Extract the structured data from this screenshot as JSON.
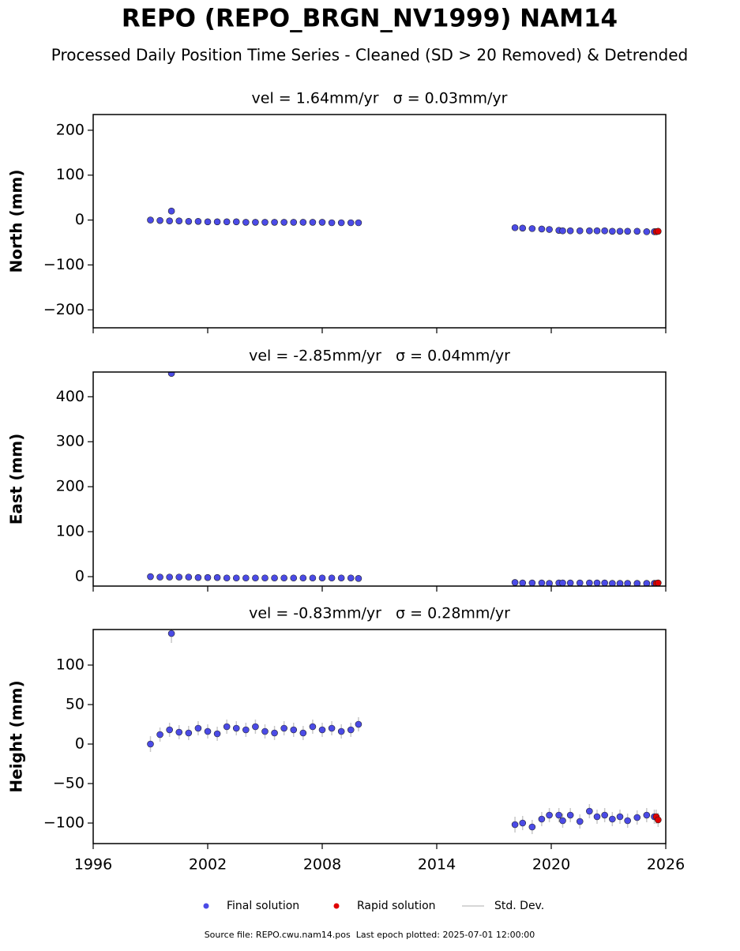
{
  "title": "REPO (REPO_BRGN_NV1999) NAM14",
  "subtitle": "Processed Daily Position Time Series - Cleaned (SD > 20 Removed) & Detrended",
  "std_dev_legend": {
    "name": "Std. Dev.",
    "color": "#c8c8c8"
  },
  "footer": "Source file: REPO.cwu.nam14.pos  Last epoch plotted: 2025-07-01 12:00:00",
  "chart_data": [
    {
      "type": "scatter",
      "title": "vel = 1.64mm/yr   σ = 0.03mm/yr",
      "y_label": "North (mm)",
      "xlim": [
        1996,
        2026
      ],
      "xticks": [
        1996,
        2002,
        2008,
        2014,
        2020,
        2026
      ],
      "x_tick_labels": false,
      "ylim": [
        -240,
        235
      ],
      "yticks": [
        {
          "value": -200,
          "label": "−200"
        },
        {
          "value": -100,
          "label": "−100"
        },
        0,
        100,
        200
      ],
      "series": [
        {
          "name": "Final solution",
          "color": "#4b4be6",
          "x": [
            1999.0,
            1999.5,
            2000.0,
            2000.1,
            2000.5,
            2001.0,
            2001.5,
            2002.0,
            2002.5,
            2003.0,
            2003.5,
            2004.0,
            2004.5,
            2005.0,
            2005.5,
            2006.0,
            2006.5,
            2007.0,
            2007.5,
            2008.0,
            2008.5,
            2009.0,
            2009.5,
            2009.9,
            2018.1,
            2018.5,
            2019.0,
            2019.5,
            2019.9,
            2020.4,
            2020.6,
            2021.0,
            2021.5,
            2022.0,
            2022.4,
            2022.8,
            2023.2,
            2023.6,
            2024.0,
            2024.5,
            2025.0,
            2025.4
          ],
          "values": [
            0,
            -1,
            -2,
            20,
            -2,
            -3,
            -3,
            -4,
            -4,
            -4,
            -4,
            -5,
            -5,
            -5,
            -5,
            -5,
            -5,
            -5,
            -5,
            -5,
            -6,
            -6,
            -6,
            -6,
            -17,
            -18,
            -19,
            -20,
            -21,
            -23,
            -24,
            -24,
            -24,
            -24,
            -24,
            -24,
            -25,
            -25,
            -25,
            -25,
            -26,
            -26
          ],
          "errors": [
            3,
            3,
            3,
            3,
            3,
            3,
            3,
            3,
            3,
            3,
            3,
            3,
            3,
            3,
            3,
            3,
            3,
            3,
            3,
            3,
            3,
            3,
            3,
            3,
            6,
            3,
            3,
            3,
            3,
            3,
            3,
            3,
            3,
            3,
            3,
            3,
            3,
            3,
            3,
            3,
            3,
            3
          ]
        },
        {
          "name": "Rapid solution",
          "color": "#e00000",
          "x": [
            2025.5,
            2025.6
          ],
          "values": [
            -26,
            -25
          ],
          "errors": [
            3,
            3
          ]
        }
      ]
    },
    {
      "type": "scatter",
      "title": "vel = -2.85mm/yr   σ = 0.04mm/yr",
      "y_label": "East (mm)",
      "xlim": [
        1996,
        2026
      ],
      "xticks": [
        1996,
        2002,
        2008,
        2014,
        2020,
        2026
      ],
      "x_tick_labels": false,
      "ylim": [
        -21,
        455
      ],
      "yticks": [
        0,
        100,
        200,
        300,
        400
      ],
      "series": [
        {
          "name": "Final solution",
          "color": "#4b4be6",
          "x": [
            1999.0,
            1999.5,
            2000.0,
            2000.1,
            2000.5,
            2001.0,
            2001.5,
            2002.0,
            2002.5,
            2003.0,
            2003.5,
            2004.0,
            2004.5,
            2005.0,
            2005.5,
            2006.0,
            2006.5,
            2007.0,
            2007.5,
            2008.0,
            2008.5,
            2009.0,
            2009.5,
            2009.9,
            2018.1,
            2018.5,
            2019.0,
            2019.5,
            2019.9,
            2020.4,
            2020.6,
            2021.0,
            2021.5,
            2022.0,
            2022.4,
            2022.8,
            2023.2,
            2023.6,
            2024.0,
            2024.5,
            2025.0,
            2025.4
          ],
          "values": [
            0,
            -1,
            -1,
            452,
            -1,
            -1,
            -2,
            -2,
            -2,
            -3,
            -3,
            -3,
            -3,
            -3,
            -3,
            -3,
            -3,
            -3,
            -3,
            -3,
            -3,
            -3,
            -3,
            -4,
            -13,
            -14,
            -14,
            -14,
            -15,
            -14,
            -14,
            -14,
            -14,
            -14,
            -14,
            -14,
            -15,
            -15,
            -15,
            -15,
            -15,
            -15
          ],
          "errors": [
            3,
            3,
            3,
            3,
            3,
            3,
            3,
            3,
            3,
            3,
            3,
            3,
            3,
            3,
            3,
            3,
            3,
            3,
            3,
            3,
            3,
            3,
            3,
            3,
            6,
            3,
            3,
            3,
            3,
            3,
            3,
            3,
            3,
            3,
            3,
            3,
            3,
            3,
            3,
            3,
            3,
            3
          ]
        },
        {
          "name": "Rapid solution",
          "color": "#e00000",
          "x": [
            2025.5,
            2025.6
          ],
          "values": [
            -15,
            -14
          ],
          "errors": [
            3,
            3
          ]
        }
      ]
    },
    {
      "type": "scatter",
      "title": "vel = -0.83mm/yr   σ = 0.28mm/yr",
      "y_label": "Height (mm)",
      "xlim": [
        1996,
        2026
      ],
      "xticks": [
        1996,
        2002,
        2008,
        2014,
        2020,
        2026
      ],
      "x_tick_labels": true,
      "ylim": [
        -126,
        145
      ],
      "yticks": [
        {
          "value": -100,
          "label": "−100"
        },
        {
          "value": -50,
          "label": "−50"
        },
        0,
        50,
        100
      ],
      "series": [
        {
          "name": "Final solution",
          "color": "#4b4be6",
          "x": [
            1999.0,
            1999.5,
            2000.0,
            2000.1,
            2000.5,
            2001.0,
            2001.5,
            2002.0,
            2002.5,
            2003.0,
            2003.5,
            2004.0,
            2004.5,
            2005.0,
            2005.5,
            2006.0,
            2006.5,
            2007.0,
            2007.5,
            2008.0,
            2008.5,
            2009.0,
            2009.5,
            2009.9,
            2018.1,
            2018.5,
            2019.0,
            2019.5,
            2019.9,
            2020.4,
            2020.6,
            2021.0,
            2021.5,
            2022.0,
            2022.4,
            2022.8,
            2023.2,
            2023.6,
            2024.0,
            2024.5,
            2025.0,
            2025.4
          ],
          "values": [
            0,
            12,
            18,
            140,
            15,
            14,
            20,
            16,
            13,
            22,
            20,
            18,
            22,
            16,
            14,
            20,
            18,
            14,
            22,
            18,
            20,
            16,
            18,
            25,
            -102,
            -100,
            -105,
            -95,
            -90,
            -90,
            -97,
            -90,
            -98,
            -85,
            -92,
            -90,
            -95,
            -92,
            -97,
            -93,
            -90,
            -92
          ],
          "errors": [
            10,
            9,
            9,
            12,
            9,
            9,
            9,
            9,
            9,
            9,
            9,
            9,
            9,
            9,
            9,
            9,
            9,
            9,
            9,
            9,
            9,
            9,
            9,
            9,
            10,
            9,
            9,
            9,
            9,
            9,
            9,
            9,
            9,
            9,
            9,
            9,
            9,
            9,
            9,
            9,
            9,
            9
          ]
        },
        {
          "name": "Rapid solution",
          "color": "#e00000",
          "x": [
            2025.5,
            2025.6
          ],
          "values": [
            -92,
            -96
          ],
          "errors": [
            9,
            9
          ]
        }
      ]
    }
  ]
}
